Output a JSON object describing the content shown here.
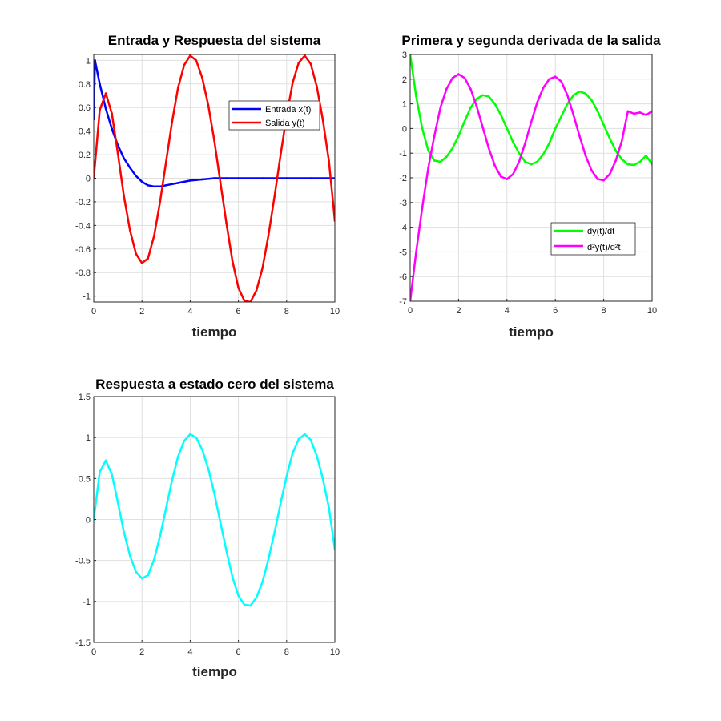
{
  "chart_data": [
    {
      "id": "p1",
      "type": "line",
      "title": "Entrada y Respuesta del sistema",
      "xlabel": "tiempo",
      "ylabel": "",
      "xlim": [
        0,
        10
      ],
      "ylim": [
        -1.05,
        1.05
      ],
      "xticks": [
        0,
        2,
        4,
        6,
        8,
        10
      ],
      "yticks": [
        -1,
        -0.8,
        -0.6,
        -0.4,
        -0.2,
        0,
        0.2,
        0.4,
        0.6,
        0.8,
        1
      ],
      "grid": true,
      "legend_position": "top-right",
      "series": [
        {
          "name": "Entrada x(t)",
          "color": "#0000ff",
          "x": [
            0,
            0.05,
            0.25,
            0.5,
            0.75,
            1,
            1.25,
            1.5,
            1.75,
            2,
            2.25,
            2.5,
            2.75,
            3,
            3.5,
            4,
            4.5,
            5,
            5.5,
            6,
            7,
            8,
            9,
            10
          ],
          "y": [
            0.5,
            1.0,
            0.8,
            0.59,
            0.42,
            0.28,
            0.17,
            0.09,
            0.02,
            -0.03,
            -0.06,
            -0.07,
            -0.07,
            -0.06,
            -0.04,
            -0.02,
            -0.01,
            0,
            0,
            0,
            0,
            0,
            0,
            0
          ]
        },
        {
          "name": "Salida y(t)",
          "color": "#ff0000",
          "x": [
            0,
            0.25,
            0.5,
            0.75,
            1,
            1.25,
            1.5,
            1.75,
            2,
            2.25,
            2.5,
            2.75,
            3,
            3.25,
            3.5,
            3.75,
            4,
            4.25,
            4.5,
            4.75,
            5,
            5.25,
            5.5,
            5.75,
            6,
            6.25,
            6.5,
            6.75,
            7,
            7.25,
            7.5,
            7.75,
            8,
            8.25,
            8.5,
            8.75,
            9,
            9.25,
            9.5,
            9.75,
            10
          ],
          "y": [
            0,
            0.58,
            0.72,
            0.55,
            0.21,
            -0.15,
            -0.44,
            -0.64,
            -0.72,
            -0.68,
            -0.49,
            -0.2,
            0.14,
            0.48,
            0.77,
            0.96,
            1.04,
            1.0,
            0.85,
            0.62,
            0.32,
            -0.03,
            -0.38,
            -0.7,
            -0.93,
            -1.04,
            -1.05,
            -0.95,
            -0.76,
            -0.48,
            -0.15,
            0.2,
            0.53,
            0.81,
            0.98,
            1.04,
            0.97,
            0.78,
            0.5,
            0.15,
            -0.36
          ]
        }
      ]
    },
    {
      "id": "p2",
      "type": "line",
      "title": "Primera y segunda derivada de la salida",
      "xlabel": "tiempo",
      "ylabel": "",
      "xlim": [
        0,
        10
      ],
      "ylim": [
        -7,
        3
      ],
      "xticks": [
        0,
        2,
        4,
        6,
        8,
        10
      ],
      "yticks": [
        -7,
        -6,
        -5,
        -4,
        -3,
        -2,
        -1,
        0,
        1,
        2,
        3
      ],
      "grid": true,
      "legend_position": "bottom-right",
      "series": [
        {
          "name": "dy(t)/dt",
          "color": "#00ff00",
          "x": [
            0,
            0.25,
            0.5,
            0.75,
            1,
            1.25,
            1.5,
            1.75,
            2,
            2.25,
            2.5,
            2.75,
            3,
            3.25,
            3.5,
            3.75,
            4,
            4.25,
            4.5,
            4.75,
            5,
            5.25,
            5.5,
            5.75,
            6,
            6.25,
            6.5,
            6.75,
            7,
            7.25,
            7.5,
            7.75,
            8,
            8.25,
            8.5,
            8.75,
            9,
            9.25,
            9.5,
            9.75,
            10
          ],
          "y": [
            3.0,
            1.3,
            0,
            -0.9,
            -1.3,
            -1.35,
            -1.15,
            -0.8,
            -0.3,
            0.3,
            0.85,
            1.2,
            1.35,
            1.3,
            1.0,
            0.55,
            0,
            -0.55,
            -1.0,
            -1.35,
            -1.45,
            -1.35,
            -1.05,
            -0.6,
            0,
            0.5,
            1.0,
            1.35,
            1.5,
            1.42,
            1.15,
            0.7,
            0.15,
            -0.4,
            -0.9,
            -1.25,
            -1.45,
            -1.48,
            -1.35,
            -1.1,
            -1.45
          ]
        },
        {
          "name": "d²y(t)/d²t",
          "color": "#ff00ff",
          "x": [
            0,
            0.25,
            0.5,
            0.75,
            1,
            1.25,
            1.5,
            1.75,
            2,
            2.25,
            2.5,
            2.75,
            3,
            3.25,
            3.5,
            3.75,
            4,
            4.25,
            4.5,
            4.75,
            5,
            5.25,
            5.5,
            5.75,
            6,
            6.25,
            6.5,
            6.75,
            7,
            7.25,
            7.5,
            7.75,
            8,
            8.25,
            8.5,
            8.75,
            9,
            9.25,
            9.5,
            9.75,
            10
          ],
          "y": [
            -7,
            -5.0,
            -3.2,
            -1.6,
            -0.3,
            0.85,
            1.6,
            2.05,
            2.2,
            2.05,
            1.6,
            0.9,
            0.05,
            -0.8,
            -1.5,
            -1.95,
            -2.05,
            -1.85,
            -1.35,
            -0.6,
            0.25,
            1.05,
            1.65,
            2.0,
            2.1,
            1.9,
            1.35,
            0.55,
            -0.3,
            -1.1,
            -1.7,
            -2.05,
            -2.1,
            -1.85,
            -1.3,
            -0.5,
            0.7,
            0.6,
            0.65,
            0.55,
            0.7
          ]
        }
      ]
    },
    {
      "id": "p3",
      "type": "line",
      "title": "Respuesta a estado cero del sistema",
      "xlabel": "tiempo",
      "ylabel": "",
      "xlim": [
        0,
        10
      ],
      "ylim": [
        -1.5,
        1.5
      ],
      "xticks": [
        0,
        2,
        4,
        6,
        8,
        10
      ],
      "yticks": [
        -1.5,
        -1,
        -0.5,
        0,
        0.5,
        1,
        1.5
      ],
      "grid": true,
      "series": [
        {
          "name": "",
          "color": "#00ffff",
          "x": [
            0,
            0.25,
            0.5,
            0.75,
            1,
            1.25,
            1.5,
            1.75,
            2,
            2.25,
            2.5,
            2.75,
            3,
            3.25,
            3.5,
            3.75,
            4,
            4.25,
            4.5,
            4.75,
            5,
            5.25,
            5.5,
            5.75,
            6,
            6.25,
            6.5,
            6.75,
            7,
            7.25,
            7.5,
            7.75,
            8,
            8.25,
            8.5,
            8.75,
            9,
            9.25,
            9.5,
            9.75,
            10
          ],
          "y": [
            0,
            0.58,
            0.72,
            0.55,
            0.21,
            -0.15,
            -0.44,
            -0.64,
            -0.72,
            -0.68,
            -0.49,
            -0.2,
            0.14,
            0.48,
            0.77,
            0.96,
            1.04,
            1.0,
            0.85,
            0.62,
            0.32,
            -0.03,
            -0.38,
            -0.7,
            -0.93,
            -1.04,
            -1.05,
            -0.95,
            -0.76,
            -0.48,
            -0.15,
            0.2,
            0.53,
            0.81,
            0.98,
            1.04,
            0.97,
            0.78,
            0.5,
            0.15,
            -0.36
          ]
        }
      ]
    }
  ]
}
